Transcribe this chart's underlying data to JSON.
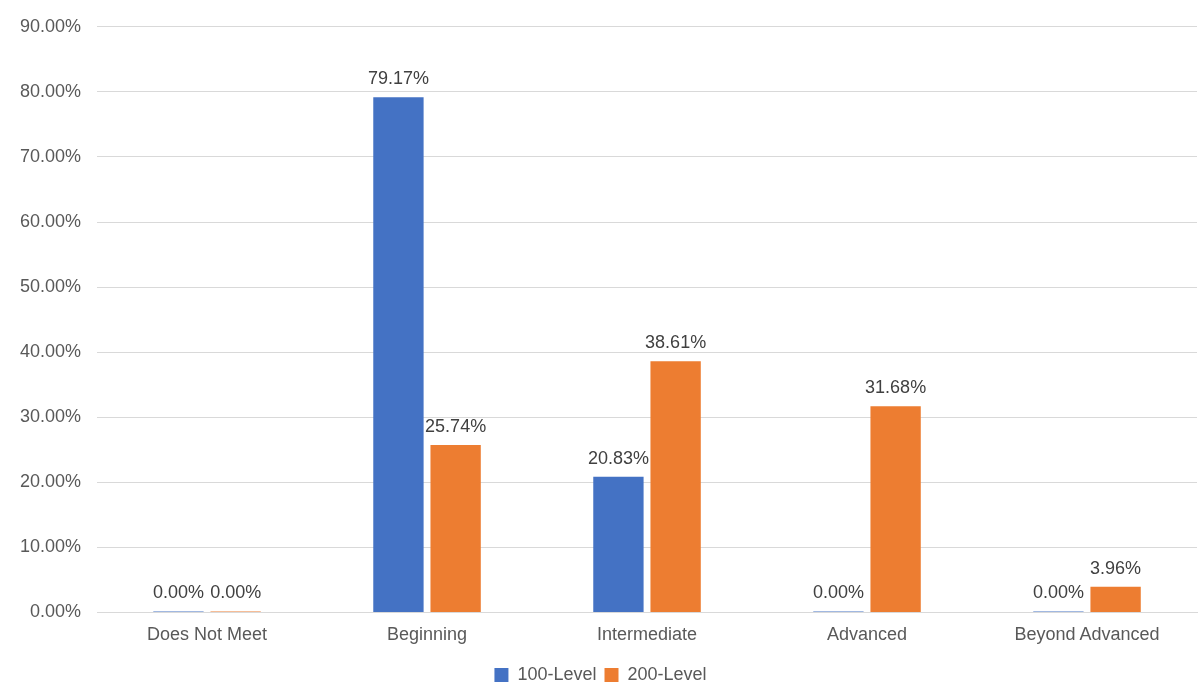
{
  "chart_data": {
    "type": "bar",
    "categories": [
      "Does Not Meet",
      "Beginning",
      "Intermediate",
      "Advanced",
      "Beyond Advanced"
    ],
    "series": [
      {
        "name": "100-Level",
        "color": "#4472c4",
        "values": [
          0,
          79.17,
          20.83,
          0,
          0
        ],
        "value_labels": [
          "0.00%",
          "79.17%",
          "20.83%",
          "0.00%",
          "0.00%"
        ]
      },
      {
        "name": "200-Level",
        "color": "#ed7d31",
        "values": [
          0,
          25.74,
          38.61,
          31.68,
          3.96
        ],
        "value_labels": [
          "0.00%",
          "25.74%",
          "38.61%",
          "31.68%",
          "3.96%"
        ]
      }
    ],
    "ylim": [
      0,
      90
    ],
    "yticks": [
      {
        "value": 0,
        "label": "0.00%"
      },
      {
        "value": 10,
        "label": "10.00%"
      },
      {
        "value": 20,
        "label": "20.00%"
      },
      {
        "value": 30,
        "label": "30.00%"
      },
      {
        "value": 40,
        "label": "40.00%"
      },
      {
        "value": 50,
        "label": "50.00%"
      },
      {
        "value": 60,
        "label": "60.00%"
      },
      {
        "value": 70,
        "label": "70.00%"
      },
      {
        "value": 80,
        "label": "80.00%"
      },
      {
        "value": 90,
        "label": "90.00%"
      }
    ],
    "grid": "y",
    "legend": "bottom"
  }
}
